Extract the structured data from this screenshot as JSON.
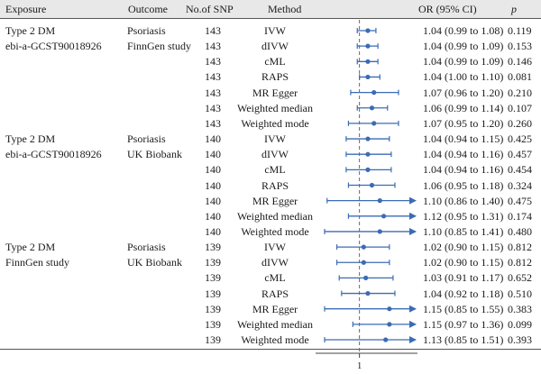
{
  "columns": {
    "exposure": "Exposure",
    "outcome": "Outcome",
    "nsnp": "No.of SNP",
    "method": "Method",
    "or": "OR (95% CI)",
    "p": "p"
  },
  "groups": [
    {
      "exposure": [
        "Type 2 DM",
        "ebi-a-GCST90018926"
      ],
      "outcome": [
        "Psoriasis",
        "FinnGen study"
      ],
      "nsnp": "143",
      "rows": [
        {
          "method": "IVW",
          "or_text": "1.04 (0.99 to 1.08)",
          "p": "0.119"
        },
        {
          "method": "dIVW",
          "or_text": "1.04 (0.99 to 1.09)",
          "p": "0.153"
        },
        {
          "method": "cML",
          "or_text": "1.04 (0.99 to 1.09)",
          "p": "0.146"
        },
        {
          "method": "RAPS",
          "or_text": "1.04 (1.00 to 1.10)",
          "p": "0.081"
        },
        {
          "method": "MR Egger",
          "or_text": "1.07 (0.96 to 1.20)",
          "p": "0.210"
        },
        {
          "method": "Weighted median",
          "or_text": "1.06 (0.99 to 1.14)",
          "p": "0.107"
        },
        {
          "method": "Weighted mode",
          "or_text": "1.07 (0.95 to 1.20)",
          "p": "0.260"
        }
      ]
    },
    {
      "exposure": [
        "Type 2 DM",
        "ebi-a-GCST90018926"
      ],
      "outcome": [
        "Psoriasis",
        "UK Biobank"
      ],
      "nsnp": "140",
      "rows": [
        {
          "method": "IVW",
          "or_text": "1.04 (0.94 to 1.15)",
          "p": "0.425"
        },
        {
          "method": "dIVW",
          "or_text": "1.04 (0.94 to 1.16)",
          "p": "0.457"
        },
        {
          "method": "cML",
          "or_text": "1.04 (0.94 to 1.16)",
          "p": "0.454"
        },
        {
          "method": "RAPS",
          "or_text": "1.06 (0.95 to 1.18)",
          "p": "0.324"
        },
        {
          "method": "MR Egger",
          "or_text": "1.10 (0.86 to 1.40)",
          "p": "0.475"
        },
        {
          "method": "Weighted median",
          "or_text": "1.12 (0.95 to 1.31)",
          "p": "0.174"
        },
        {
          "method": "Weighted mode",
          "or_text": "1.10 (0.85 to 1.41)",
          "p": "0.480"
        }
      ]
    },
    {
      "exposure": [
        "Type 2 DM",
        "FinnGen study"
      ],
      "outcome": [
        "Psoriasis",
        "UK Biobank"
      ],
      "nsnp": "139",
      "rows": [
        {
          "method": "IVW",
          "or_text": "1.02 (0.90 to 1.15)",
          "p": "0.812"
        },
        {
          "method": "dIVW",
          "or_text": "1.02 (0.90 to 1.15)",
          "p": "0.812"
        },
        {
          "method": "cML",
          "or_text": "1.03 (0.91 to 1.17)",
          "p": "0.652"
        },
        {
          "method": "RAPS",
          "or_text": "1.04 (0.92 to 1.18)",
          "p": "0.510"
        },
        {
          "method": "MR Egger",
          "or_text": "1.15 (0.85 to 1.55)",
          "p": "0.383"
        },
        {
          "method": "Weighted median",
          "or_text": "1.15 (0.97 to 1.36)",
          "p": "0.099"
        },
        {
          "method": "Weighted mode",
          "or_text": "1.13 (0.85 to 1.51)",
          "p": "0.393"
        }
      ]
    }
  ],
  "chart_data": {
    "type": "forest",
    "reference_value": 1,
    "xlim": [
      0.85,
      1.3
    ],
    "x_tick_labels": [
      "1"
    ],
    "marker_color": "#3b6bb5",
    "reference_line_color": "#666666",
    "arrow_beyond_range": true,
    "series": [
      {
        "or": 1.04,
        "lo": 0.99,
        "hi": 1.08
      },
      {
        "or": 1.04,
        "lo": 0.99,
        "hi": 1.09
      },
      {
        "or": 1.04,
        "lo": 0.99,
        "hi": 1.09
      },
      {
        "or": 1.04,
        "lo": 1.0,
        "hi": 1.1
      },
      {
        "or": 1.07,
        "lo": 0.96,
        "hi": 1.2
      },
      {
        "or": 1.06,
        "lo": 0.99,
        "hi": 1.14
      },
      {
        "or": 1.07,
        "lo": 0.95,
        "hi": 1.2
      },
      {
        "or": 1.04,
        "lo": 0.94,
        "hi": 1.15
      },
      {
        "or": 1.04,
        "lo": 0.94,
        "hi": 1.16
      },
      {
        "or": 1.04,
        "lo": 0.94,
        "hi": 1.16
      },
      {
        "or": 1.06,
        "lo": 0.95,
        "hi": 1.18
      },
      {
        "or": 1.1,
        "lo": 0.86,
        "hi": 1.4
      },
      {
        "or": 1.12,
        "lo": 0.95,
        "hi": 1.31
      },
      {
        "or": 1.1,
        "lo": 0.85,
        "hi": 1.41
      },
      {
        "or": 1.02,
        "lo": 0.9,
        "hi": 1.15
      },
      {
        "or": 1.02,
        "lo": 0.9,
        "hi": 1.15
      },
      {
        "or": 1.03,
        "lo": 0.91,
        "hi": 1.17
      },
      {
        "or": 1.04,
        "lo": 0.92,
        "hi": 1.18
      },
      {
        "or": 1.15,
        "lo": 0.85,
        "hi": 1.55
      },
      {
        "or": 1.15,
        "lo": 0.97,
        "hi": 1.36
      },
      {
        "or": 1.13,
        "lo": 0.85,
        "hi": 1.51
      }
    ]
  }
}
